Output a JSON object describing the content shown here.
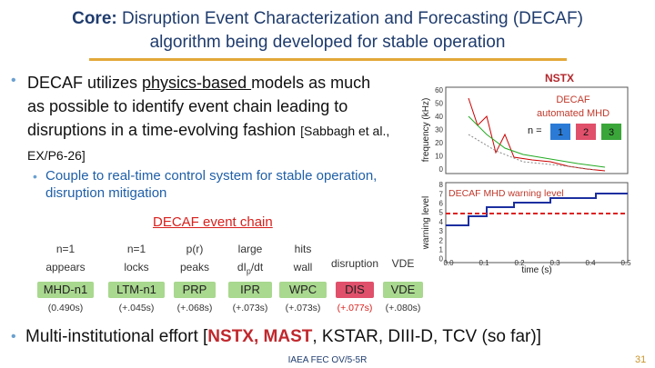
{
  "header": {
    "title_bold": "Core:",
    "title_rest": " Disruption Event Characterization and Forecasting (DECAF)",
    "title_line2": "algorithm being developed for stable operation"
  },
  "bullet1": {
    "pre": "DECAF utilizes ",
    "underlined": "physics-based ",
    "post": "models as much as possible to identify event chain leading to disruptions in a time-evolving fashion ",
    "ref": "[Sabbagh et al., EX/P6-26]"
  },
  "sub_bullet": "Couple to real-time control system for stable operation, disruption mitigation",
  "chain": {
    "title": "DECAF event chain",
    "events": [
      {
        "top": "n=1",
        "top2": "appears",
        "box": "MHD-n1",
        "time": "(0.490s)"
      },
      {
        "top": "n=1",
        "top2": "locks",
        "box": "LTM-n1",
        "time": "(+.045s)"
      },
      {
        "top": "p(r)",
        "top2": "peaks",
        "box": "PRP",
        "time": "(+.068s)"
      },
      {
        "top": "large",
        "top2": "dI",
        "top2_sub": "p",
        "top2_post": "/dt",
        "box": "IPR",
        "time": "(+.073s)"
      },
      {
        "top": "hits",
        "top2": "wall",
        "box": "WPC",
        "time": "(+.073s)"
      },
      {
        "top2": "disruption",
        "box": "DIS",
        "time": "(+.077s)"
      },
      {
        "top2": "VDE",
        "box": "VDE",
        "time": "(+.080s)"
      }
    ]
  },
  "figure": {
    "device": "NSTX",
    "legend_title": "DECAF",
    "legend_sub": "automated MHD",
    "n_label": "n =",
    "n_values": [
      "1",
      "2",
      "3"
    ],
    "top_ylabel": "frequency (kHz)",
    "top_yticks": [
      "60",
      "50",
      "40",
      "30",
      "20",
      "10",
      "0"
    ],
    "bottom_ylabel": "warning level",
    "warning_label": "DECAF MHD warning level",
    "bottom_yticks": [
      "8",
      "7",
      "6",
      "5",
      "4",
      "3",
      "2",
      "1",
      "0"
    ],
    "xlabel": "time (s)",
    "xticks": [
      "0.0",
      "0.1",
      "0.2",
      "0.3",
      "0.4",
      "0.5"
    ]
  },
  "bullet2": {
    "pre": "Multi-institutional effort [",
    "bold": "NSTX, MAST",
    "post": ", KSTAR, DIII-D, TCV (so far)]"
  },
  "footer": {
    "text": "IAEA FEC OV/5-5R",
    "page": "31"
  }
}
